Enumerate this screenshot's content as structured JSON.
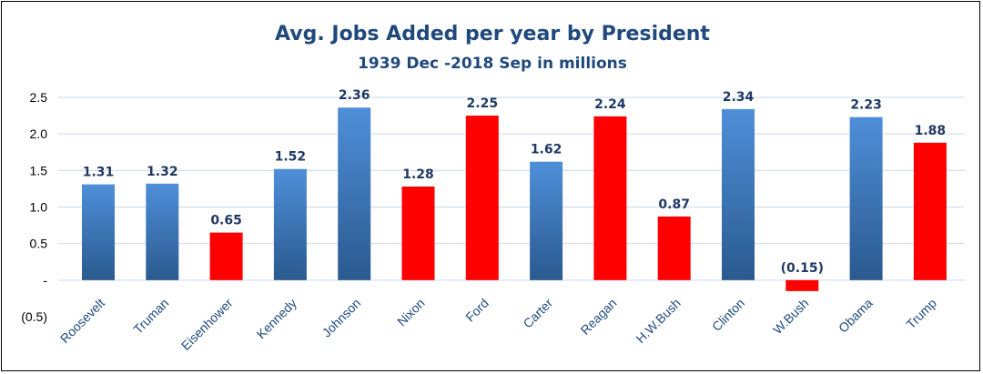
{
  "chart_data": {
    "type": "bar",
    "title": "Avg. Jobs Added per year by President",
    "subtitle": "1939 Dec -2018 Sep in millions",
    "xlabel": "",
    "ylabel": "",
    "ylim": [
      -0.5,
      2.5
    ],
    "yticks": [
      {
        "value": 2.5,
        "label": "2.5"
      },
      {
        "value": 2.0,
        "label": "2.0"
      },
      {
        "value": 1.5,
        "label": "1.5"
      },
      {
        "value": 1.0,
        "label": "1.0"
      },
      {
        "value": 0.5,
        "label": "0.5"
      },
      {
        "value": 0.0,
        "label": "-"
      },
      {
        "value": -0.5,
        "label": "(0.5)"
      }
    ],
    "grid": true,
    "legend": "none",
    "colors": {
      "democrat_top": "#4f8fd9",
      "democrat_bottom": "#2a5a8f",
      "republican": "#ff0000",
      "gridline": "#c9d9ea",
      "title": "#1f497d"
    },
    "categories": [
      "Roosevelt",
      "Truman",
      "Eisenhower",
      "Kennedy",
      "Johnson",
      "Nixon",
      "Ford",
      "Carter",
      "Reagan",
      "H.W.Bush",
      "Clinton",
      "W.Bush",
      "Obama",
      "Trump"
    ],
    "values": [
      1.31,
      1.32,
      0.65,
      1.52,
      2.36,
      1.28,
      2.25,
      1.62,
      2.24,
      0.87,
      2.34,
      -0.15,
      2.23,
      1.88
    ],
    "value_labels": [
      "1.31",
      "1.32",
      "0.65",
      "1.52",
      "2.36",
      "1.28",
      "2.25",
      "1.62",
      "2.24",
      "0.87",
      "2.34",
      "(0.15)",
      "2.23",
      "1.88"
    ],
    "bar_colors": [
      "democrat",
      "democrat",
      "republican",
      "democrat",
      "democrat",
      "republican",
      "republican",
      "democrat",
      "republican",
      "republican",
      "democrat",
      "republican",
      "democrat",
      "republican"
    ]
  }
}
